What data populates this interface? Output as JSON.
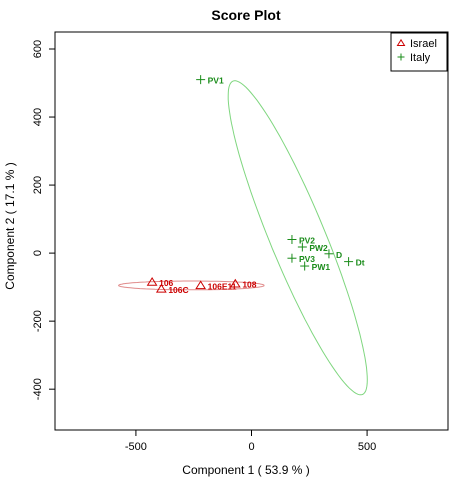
{
  "chart_data": {
    "type": "scatter",
    "title": "Score Plot",
    "xlabel": "Component 1 ( 53.9 % )",
    "ylabel": "Component 2 ( 17.1 % )",
    "xlim": [
      -850,
      850
    ],
    "ylim": [
      -520,
      650
    ],
    "xticks": [
      -500,
      0,
      500
    ],
    "xtick_labels": [
      "-500",
      "0",
      "500"
    ],
    "yticks": [
      -400,
      -200,
      0,
      200,
      400,
      600
    ],
    "ytick_labels": [
      "-400",
      "-200",
      "0",
      "200",
      "400",
      "600"
    ],
    "grid": false,
    "legend": {
      "position": "top-right"
    },
    "series": [
      {
        "name": "Israel",
        "marker": "triangle",
        "color": "#cc0000",
        "ellipse_color": "#e08a8a",
        "points": [
          {
            "label": "106",
            "x": -430,
            "y": -85
          },
          {
            "label": "106C",
            "x": -390,
            "y": -105
          },
          {
            "label": "106E11",
            "x": -220,
            "y": -95
          },
          {
            "label": "108",
            "x": -70,
            "y": -90
          }
        ]
      },
      {
        "name": "Italy",
        "marker": "plus",
        "color": "#1a8c1a",
        "ellipse_color": "#7fd67f",
        "points": [
          {
            "label": "PV1",
            "x": -220,
            "y": 510
          },
          {
            "label": "PV2",
            "x": 175,
            "y": 40
          },
          {
            "label": "PW2",
            "x": 220,
            "y": 18
          },
          {
            "label": "D",
            "x": 335,
            "y": -2
          },
          {
            "label": "Dt",
            "x": 420,
            "y": -25
          },
          {
            "label": "PV3",
            "x": 175,
            "y": -15
          },
          {
            "label": "PW1",
            "x": 230,
            "y": -38
          }
        ]
      }
    ],
    "ellipses": [
      {
        "series": "Israel",
        "cx": -260,
        "cy": -95,
        "rx": 315,
        "ry": 13,
        "angle_deg": 0
      },
      {
        "series": "Italy",
        "cx": 200,
        "cy": 45,
        "rx": 540,
        "ry": 110,
        "angle_deg": -58
      }
    ]
  }
}
